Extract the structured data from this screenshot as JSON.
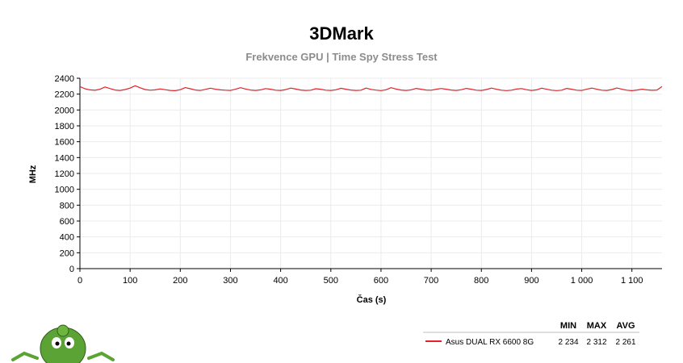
{
  "colors": {
    "series": "#e32128",
    "grid": "#ebebeb",
    "subtitle": "#8c8c8c",
    "mascot": "#5ca336"
  },
  "chart_data": {
    "type": "line",
    "title": "3DMark",
    "subtitle": "Frekvence GPU | Time Spy Stress Test",
    "xlabel": "Čas (s)",
    "ylabel": "MHz",
    "xlim": [
      0,
      1160
    ],
    "ylim": [
      0,
      2400
    ],
    "x_ticks": [
      0,
      100,
      200,
      300,
      400,
      500,
      600,
      700,
      800,
      900,
      1000,
      1100
    ],
    "x_tick_labels": [
      "0",
      "100",
      "200",
      "300",
      "400",
      "500",
      "600",
      "700",
      "800",
      "900",
      "1 000",
      "1 100"
    ],
    "y_ticks": [
      0,
      200,
      400,
      600,
      800,
      1000,
      1200,
      1400,
      1600,
      1800,
      2000,
      2200,
      2400
    ],
    "grid": true,
    "legend_position": "bottom-right",
    "legend_headers": [
      "MIN",
      "MAX",
      "AVG"
    ],
    "series": [
      {
        "name": "Asus DUAL RX 6600 8G",
        "color": "#e32128",
        "min": "2 234",
        "max": "2 312",
        "avg": "2 261",
        "x": [
          0,
          10,
          20,
          30,
          40,
          50,
          60,
          70,
          80,
          90,
          100,
          110,
          120,
          130,
          140,
          150,
          160,
          170,
          180,
          190,
          200,
          210,
          220,
          230,
          240,
          250,
          260,
          270,
          280,
          290,
          300,
          310,
          320,
          330,
          340,
          350,
          360,
          370,
          380,
          390,
          400,
          410,
          420,
          430,
          440,
          450,
          460,
          470,
          480,
          490,
          500,
          510,
          520,
          530,
          540,
          550,
          560,
          570,
          580,
          590,
          600,
          610,
          620,
          630,
          640,
          650,
          660,
          670,
          680,
          690,
          700,
          710,
          720,
          730,
          740,
          750,
          760,
          770,
          780,
          790,
          800,
          810,
          820,
          830,
          840,
          850,
          860,
          870,
          880,
          890,
          900,
          910,
          920,
          930,
          940,
          950,
          960,
          970,
          980,
          990,
          1000,
          1010,
          1020,
          1030,
          1040,
          1050,
          1060,
          1070,
          1080,
          1090,
          1100,
          1110,
          1120,
          1130,
          1140,
          1150,
          1160
        ],
        "y": [
          2295,
          2268,
          2254,
          2248,
          2262,
          2290,
          2270,
          2252,
          2246,
          2258,
          2276,
          2305,
          2280,
          2258,
          2249,
          2254,
          2266,
          2256,
          2246,
          2243,
          2256,
          2282,
          2268,
          2252,
          2246,
          2260,
          2275,
          2262,
          2254,
          2250,
          2246,
          2262,
          2281,
          2265,
          2252,
          2246,
          2254,
          2270,
          2262,
          2250,
          2246,
          2257,
          2276,
          2264,
          2252,
          2246,
          2250,
          2268,
          2262,
          2250,
          2246,
          2255,
          2274,
          2262,
          2252,
          2246,
          2250,
          2276,
          2260,
          2251,
          2244,
          2255,
          2281,
          2264,
          2252,
          2246,
          2254,
          2272,
          2262,
          2252,
          2250,
          2262,
          2271,
          2262,
          2252,
          2246,
          2256,
          2272,
          2262,
          2250,
          2246,
          2258,
          2276,
          2262,
          2250,
          2244,
          2250,
          2264,
          2270,
          2256,
          2246,
          2254,
          2275,
          2262,
          2250,
          2244,
          2250,
          2272,
          2262,
          2250,
          2246,
          2262,
          2276,
          2262,
          2250,
          2246,
          2258,
          2277,
          2262,
          2250,
          2243,
          2252,
          2262,
          2254,
          2248,
          2252,
          2295
        ]
      }
    ]
  }
}
